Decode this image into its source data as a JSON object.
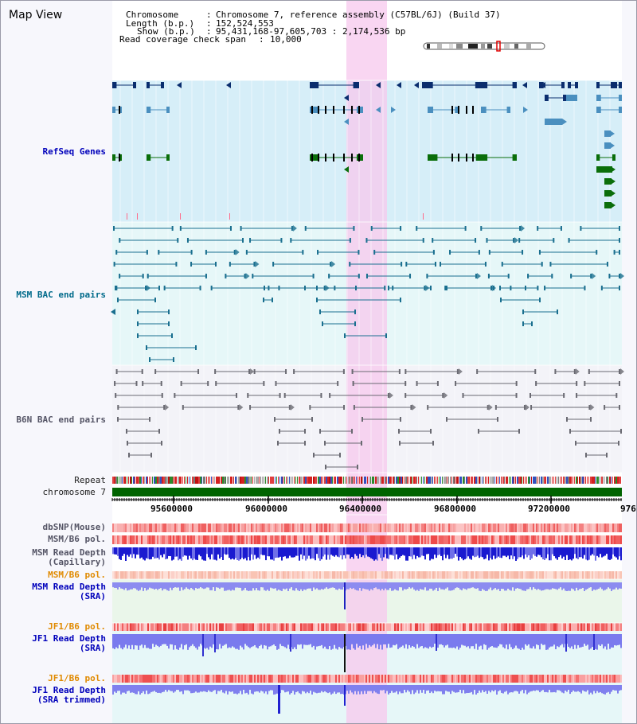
{
  "app": {
    "title": "Map View"
  },
  "header": {
    "chromosome_key": "Chromosome",
    "chromosome_value": "Chromosome 7, reference assembly (C57BL/6J) (Build 37)",
    "length_key": "Length (b.p.)",
    "length_value": "152,524,553",
    "show_key": "Show (b.p.)",
    "show_value": "95,431,168-97,605,703 : 2,174,536 bp",
    "coverage_key": "Read coverage check span",
    "coverage_value": "10,000"
  },
  "tracks": {
    "refseq": "RefSeq Genes",
    "msm_bac": "MSM BAC end pairs",
    "b6n_bac": "B6N BAC end pairs",
    "repeat": "Repeat",
    "chromosome": "chromosome 7",
    "dbsnp": "dbSNP(Mouse)",
    "msm_b6_pol_1": "MSM/B6 pol.",
    "msm_depth_cap_1": "MSM Read Depth",
    "msm_depth_cap_2": "(Capillary)",
    "msm_b6_pol_2": "MSM/B6 pol.",
    "msm_depth_sra_1": "MSM Read Depth",
    "msm_depth_sra_2": "(SRA)",
    "jf1_b6_pol_1": "JF1/B6 pol.",
    "jf1_depth_1": "JF1 Read Depth",
    "jf1_depth_2": "(SRA)",
    "jf1_b6_pol_2": "JF1/B6 pol.",
    "jf1_trim_1": "JF1 Read Depth",
    "jf1_trim_2": "(SRA trimmed)"
  },
  "axis": {
    "ticks": [
      "95600000",
      "96000000",
      "96400000",
      "96800000",
      "97200000",
      "976"
    ]
  },
  "colors": {
    "refseq_bg": "#d6eef8",
    "bac_bg": "#e6f7f8",
    "highlight": "#f7c8ee",
    "gene_dark": "#0a2d6e",
    "gene_mid": "#4a8fbf",
    "gene_green": "#0a6e0a",
    "chrom_bar": "#006400",
    "depth_blue": "#1f1fd8"
  }
}
